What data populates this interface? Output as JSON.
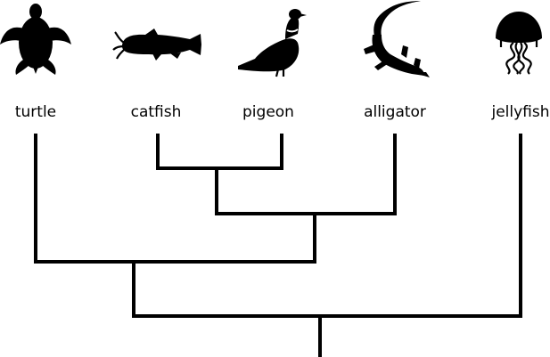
{
  "tree": {
    "taxa": [
      {
        "id": "turtle",
        "label": "turtle",
        "icon": "turtle-icon"
      },
      {
        "id": "catfish",
        "label": "catfish",
        "icon": "catfish-icon"
      },
      {
        "id": "pigeon",
        "label": "pigeon",
        "icon": "pigeon-icon"
      },
      {
        "id": "alligator",
        "label": "alligator",
        "icon": "alligator-icon"
      },
      {
        "id": "jellyfish",
        "label": "jellyfish",
        "icon": "jellyfish-icon"
      }
    ],
    "topology": "((turtle,((catfish,pigeon),alligator)),jellyfish)",
    "colors": {
      "branch": "#000000",
      "label": "#000000",
      "icon": "#000000",
      "background": "#ffffff"
    }
  }
}
